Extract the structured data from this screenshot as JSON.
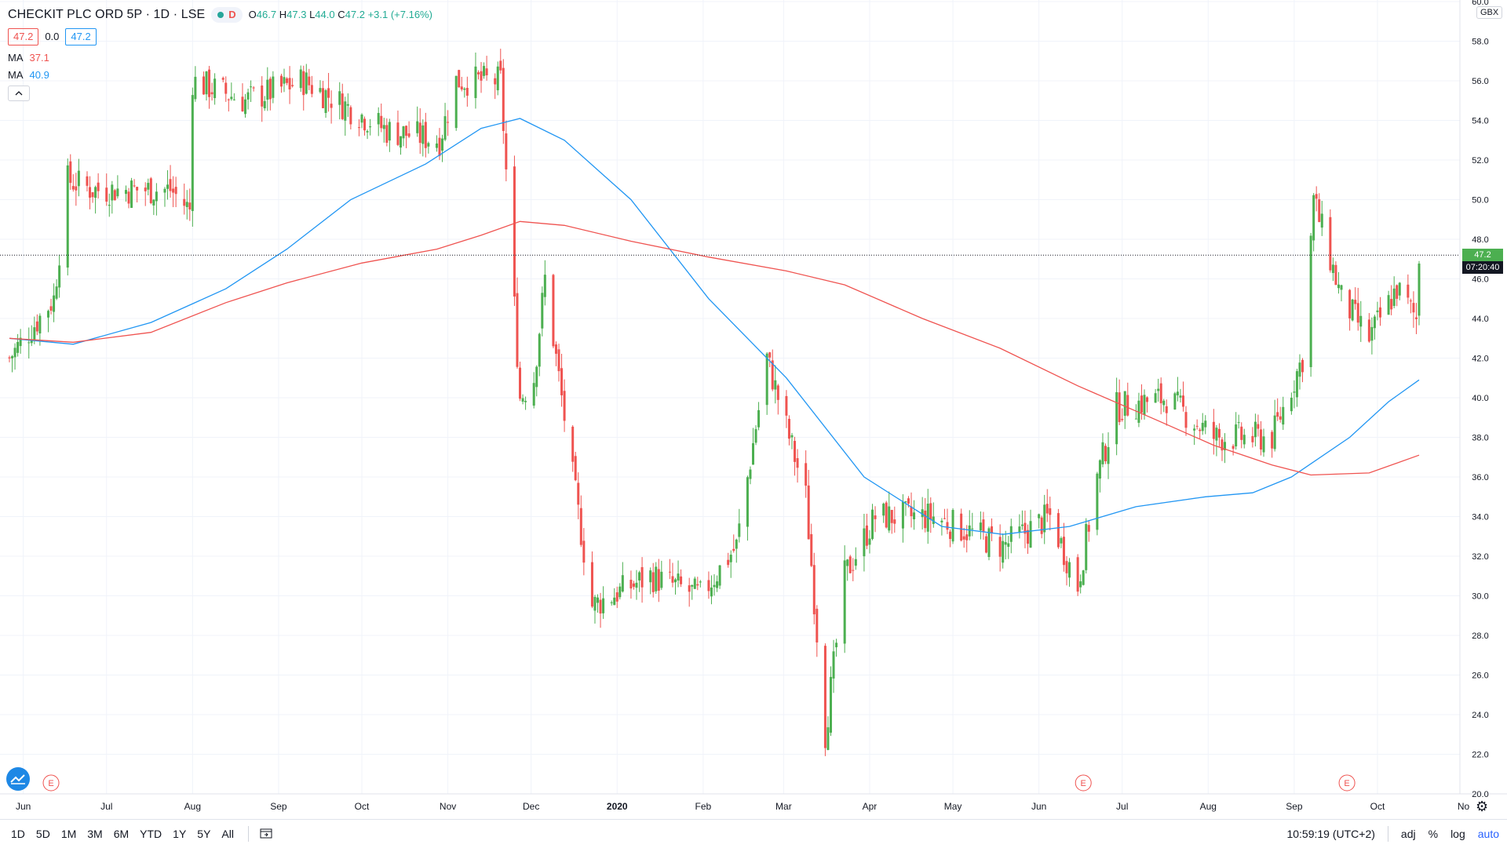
{
  "header": {
    "title": "CHECKIT PLC ORD 5P · 1D · LSE",
    "interval_badge": "D",
    "ohlc": {
      "o_label": "O",
      "o": "46.7",
      "h_label": "H",
      "h": "47.3",
      "l_label": "L",
      "l": "44.0",
      "c_label": "C",
      "c": "47.2",
      "change": "+3.1 (+7.16%)"
    },
    "bid": "47.2",
    "spread": "0.0",
    "ask": "47.2",
    "ma1": {
      "label": "MA",
      "value": "37.1",
      "color": "#ef5350"
    },
    "ma2": {
      "label": "MA",
      "value": "40.9",
      "color": "#2196f3"
    },
    "collapse_icon": "chevron-up-icon"
  },
  "price_axis": {
    "currency": "GBX",
    "ticks": [
      "60.0",
      "58.0",
      "56.0",
      "54.0",
      "52.0",
      "50.0",
      "48.0",
      "46.0",
      "44.0",
      "42.0",
      "40.0",
      "38.0",
      "36.0",
      "34.0",
      "32.0",
      "30.0",
      "28.0",
      "26.0",
      "24.0",
      "22.0",
      "20.0"
    ],
    "last_price": "47.2",
    "countdown": "07:20:40"
  },
  "time_axis": {
    "labels": [
      "Jun",
      "Jul",
      "Aug",
      "Sep",
      "Oct",
      "Nov",
      "Dec",
      "2020",
      "Feb",
      "Mar",
      "Apr",
      "May",
      "Jun",
      "Jul",
      "Aug",
      "Sep",
      "Oct",
      "No"
    ]
  },
  "earnings_markers": [
    "E",
    "E",
    "E"
  ],
  "toolbar": {
    "ranges": [
      "1D",
      "5D",
      "1M",
      "3M",
      "6M",
      "YTD",
      "1Y",
      "5Y",
      "All"
    ],
    "compare_icon": "calendar-goto-icon",
    "time": "10:59:19 (UTC+2)",
    "adj": "adj",
    "percent": "%",
    "log": "log",
    "auto": "auto",
    "settings_icon": "gear-icon"
  },
  "colors": {
    "up": "#4caf50",
    "down": "#ef5350",
    "ma_fast": "#2196f3",
    "ma_slow": "#ef5350",
    "grid": "#f0f3fa"
  },
  "chart_data": {
    "type": "candlestick",
    "x_range": [
      "2019-05-27",
      "2020-10-16"
    ],
    "ylim": [
      20,
      60
    ],
    "grid": true,
    "series": [
      {
        "name": "Price",
        "type": "candlestick",
        "points": [
          {
            "x": "2019-05-27",
            "y": 42.0
          },
          {
            "x": "2019-06-12",
            "y": 45.0
          },
          {
            "x": "2019-06-17",
            "y": 51.0
          },
          {
            "x": "2019-06-26",
            "y": 50.5
          },
          {
            "x": "2019-07-24",
            "y": 50.5
          },
          {
            "x": "2019-07-31",
            "y": 49.5
          },
          {
            "x": "2019-08-01",
            "y": 56.0
          },
          {
            "x": "2019-08-20",
            "y": 55.0
          },
          {
            "x": "2019-09-10",
            "y": 56.0
          },
          {
            "x": "2019-10-10",
            "y": 53.5
          },
          {
            "x": "2019-10-29",
            "y": 53.0
          },
          {
            "x": "2019-11-04",
            "y": 56.0
          },
          {
            "x": "2019-11-20",
            "y": 56.0
          },
          {
            "x": "2019-11-27",
            "y": 40.0
          },
          {
            "x": "2019-12-02",
            "y": 41.0
          },
          {
            "x": "2019-12-06",
            "y": 46.0
          },
          {
            "x": "2019-12-16",
            "y": 36.0
          },
          {
            "x": "2019-12-23",
            "y": 29.5
          },
          {
            "x": "2020-01-13",
            "y": 31.0
          },
          {
            "x": "2020-01-31",
            "y": 30.0
          },
          {
            "x": "2020-02-13",
            "y": 32.5
          },
          {
            "x": "2020-02-24",
            "y": 42.0
          },
          {
            "x": "2020-03-09",
            "y": 35.0
          },
          {
            "x": "2020-03-16",
            "y": 23.0
          },
          {
            "x": "2020-03-23",
            "y": 31.0
          },
          {
            "x": "2020-04-03",
            "y": 34.0
          },
          {
            "x": "2020-04-24",
            "y": 34.0
          },
          {
            "x": "2020-05-19",
            "y": 32.5
          },
          {
            "x": "2020-06-05",
            "y": 34.0
          },
          {
            "x": "2020-06-15",
            "y": 30.5
          },
          {
            "x": "2020-06-22",
            "y": 36.0
          },
          {
            "x": "2020-06-29",
            "y": 39.5
          },
          {
            "x": "2020-07-17",
            "y": 40.0
          },
          {
            "x": "2020-08-03",
            "y": 38.0
          },
          {
            "x": "2020-08-24",
            "y": 38.0
          },
          {
            "x": "2020-09-04",
            "y": 42.0
          },
          {
            "x": "2020-09-08",
            "y": 50.0
          },
          {
            "x": "2020-09-18",
            "y": 45.0
          },
          {
            "x": "2020-09-28",
            "y": 43.0
          },
          {
            "x": "2020-10-08",
            "y": 45.5
          },
          {
            "x": "2020-10-15",
            "y": 44.0
          },
          {
            "x": "2020-10-16",
            "y": 47.2
          }
        ]
      },
      {
        "name": "MA",
        "value_label": "40.9",
        "color": "#2196f3",
        "points": [
          {
            "x": "2019-05-27",
            "y": 43.0
          },
          {
            "x": "2019-06-19",
            "y": 42.7
          },
          {
            "x": "2019-07-17",
            "y": 43.8
          },
          {
            "x": "2019-08-13",
            "y": 45.5
          },
          {
            "x": "2019-09-04",
            "y": 47.5
          },
          {
            "x": "2019-09-27",
            "y": 50.0
          },
          {
            "x": "2019-10-24",
            "y": 51.8
          },
          {
            "x": "2019-11-13",
            "y": 53.6
          },
          {
            "x": "2019-11-27",
            "y": 54.1
          },
          {
            "x": "2019-12-13",
            "y": 53.0
          },
          {
            "x": "2020-01-06",
            "y": 50.0
          },
          {
            "x": "2020-02-03",
            "y": 45.0
          },
          {
            "x": "2020-03-02",
            "y": 41.0
          },
          {
            "x": "2020-03-30",
            "y": 36.0
          },
          {
            "x": "2020-04-27",
            "y": 33.5
          },
          {
            "x": "2020-05-19",
            "y": 33.1
          },
          {
            "x": "2020-06-12",
            "y": 33.5
          },
          {
            "x": "2020-07-06",
            "y": 34.5
          },
          {
            "x": "2020-07-31",
            "y": 35.0
          },
          {
            "x": "2020-08-17",
            "y": 35.2
          },
          {
            "x": "2020-08-31",
            "y": 36.0
          },
          {
            "x": "2020-09-21",
            "y": 38.0
          },
          {
            "x": "2020-10-05",
            "y": 39.8
          },
          {
            "x": "2020-10-16",
            "y": 40.9
          }
        ]
      },
      {
        "name": "MA",
        "value_label": "37.1",
        "color": "#ef5350",
        "points": [
          {
            "x": "2019-05-27",
            "y": 43.0
          },
          {
            "x": "2019-06-19",
            "y": 42.8
          },
          {
            "x": "2019-07-17",
            "y": 43.3
          },
          {
            "x": "2019-08-13",
            "y": 44.8
          },
          {
            "x": "2019-09-04",
            "y": 45.8
          },
          {
            "x": "2019-10-01",
            "y": 46.8
          },
          {
            "x": "2019-10-28",
            "y": 47.5
          },
          {
            "x": "2019-11-13",
            "y": 48.2
          },
          {
            "x": "2019-11-27",
            "y": 48.9
          },
          {
            "x": "2019-12-13",
            "y": 48.7
          },
          {
            "x": "2020-01-06",
            "y": 47.9
          },
          {
            "x": "2020-02-03",
            "y": 47.1
          },
          {
            "x": "2020-03-02",
            "y": 46.4
          },
          {
            "x": "2020-03-23",
            "y": 45.7
          },
          {
            "x": "2020-04-20",
            "y": 44.0
          },
          {
            "x": "2020-05-18",
            "y": 42.5
          },
          {
            "x": "2020-06-15",
            "y": 40.6
          },
          {
            "x": "2020-07-13",
            "y": 38.9
          },
          {
            "x": "2020-08-03",
            "y": 37.6
          },
          {
            "x": "2020-08-24",
            "y": 36.6
          },
          {
            "x": "2020-09-07",
            "y": 36.1
          },
          {
            "x": "2020-09-28",
            "y": 36.2
          },
          {
            "x": "2020-10-16",
            "y": 37.1
          }
        ]
      }
    ]
  }
}
